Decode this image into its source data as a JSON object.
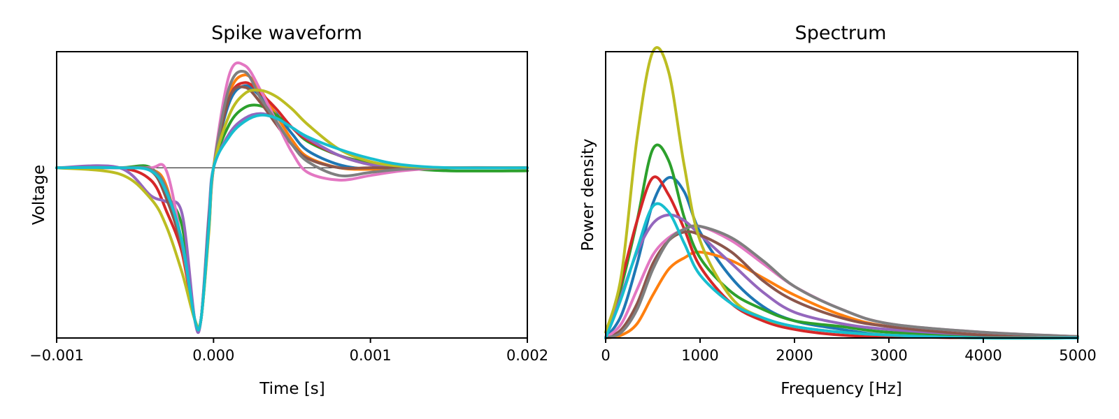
{
  "chart_data": [
    {
      "type": "line",
      "title": "Spike waveform",
      "xlabel": "Time [s]",
      "ylabel": "Voltage",
      "xlim": [
        -0.001,
        0.002
      ],
      "ylim": [
        -1.1,
        0.75
      ],
      "xticks": [
        -0.001,
        0.0,
        0.001,
        0.002
      ],
      "xtick_labels": [
        "−0.001",
        "0.000",
        "0.001",
        "0.002"
      ],
      "zero_line": true,
      "series": [
        {
          "name": "blue",
          "color": "#1f77b4",
          "x": [
            -0.001,
            -0.0006,
            -0.0004,
            -0.0003,
            -0.0002,
            -0.00012,
            -8e-05,
            -3e-05,
            0.0,
            0.0001,
            0.0002,
            0.0003,
            0.0004,
            0.0005,
            0.0006,
            0.0008,
            0.001,
            0.0012,
            0.0015,
            0.002
          ],
          "y": [
            0.0,
            0.0,
            -0.02,
            -0.18,
            -0.5,
            -0.98,
            -0.98,
            -0.4,
            0.0,
            0.42,
            0.53,
            0.46,
            0.35,
            0.22,
            0.11,
            0.02,
            -0.01,
            -0.01,
            0.0,
            0.0
          ]
        },
        {
          "name": "orange",
          "color": "#ff7f0e",
          "x": [
            -0.001,
            -0.0006,
            -0.0004,
            -0.0003,
            -0.0002,
            -0.00012,
            -8e-05,
            -3e-05,
            0.0,
            0.0001,
            0.0002,
            0.0003,
            0.0004,
            0.0005,
            0.0006,
            0.0008,
            0.001,
            0.0012,
            0.0015,
            0.002
          ],
          "y": [
            0.0,
            0.0,
            -0.01,
            -0.12,
            -0.55,
            -0.98,
            -0.98,
            -0.35,
            0.0,
            0.48,
            0.6,
            0.5,
            0.34,
            0.18,
            0.07,
            0.0,
            -0.01,
            0.0,
            0.0,
            0.0
          ]
        },
        {
          "name": "green",
          "color": "#2ca02c",
          "x": [
            -0.001,
            -0.0006,
            -0.0004,
            -0.0003,
            -0.0002,
            -0.00012,
            -8e-05,
            -3e-05,
            0.0,
            0.0001,
            0.0002,
            0.0003,
            0.0004,
            0.0005,
            0.0006,
            0.0008,
            0.001,
            0.0012,
            0.0015,
            0.002
          ],
          "y": [
            0.0,
            0.0,
            0.0,
            -0.18,
            -0.38,
            -0.98,
            -0.98,
            -0.38,
            0.0,
            0.28,
            0.39,
            0.4,
            0.34,
            0.26,
            0.17,
            0.08,
            0.03,
            0.0,
            -0.02,
            -0.02
          ]
        },
        {
          "name": "red",
          "color": "#d62728",
          "x": [
            -0.001,
            -0.0006,
            -0.0004,
            -0.0003,
            -0.0002,
            -0.00012,
            -8e-05,
            -3e-05,
            0.0,
            0.0001,
            0.0002,
            0.0003,
            0.0004,
            0.0005,
            0.0006,
            0.0008,
            0.001,
            0.0012,
            0.0015,
            0.002
          ],
          "y": [
            0.0,
            0.0,
            -0.08,
            -0.28,
            -0.55,
            -0.98,
            -0.98,
            -0.35,
            0.0,
            0.45,
            0.55,
            0.48,
            0.38,
            0.26,
            0.18,
            0.08,
            0.02,
            0.0,
            0.0,
            0.0
          ]
        },
        {
          "name": "purple",
          "color": "#9467bd",
          "x": [
            -0.001,
            -0.0006,
            -0.0004,
            -0.0003,
            -0.0002,
            -0.00012,
            -8e-05,
            -3e-05,
            0.0,
            0.0001,
            0.0002,
            0.0003,
            0.0004,
            0.0005,
            0.0006,
            0.0008,
            0.001,
            0.0012,
            0.0015,
            0.002
          ],
          "y": [
            0.0,
            0.0,
            -0.18,
            -0.22,
            -0.3,
            -0.98,
            -0.98,
            -0.3,
            0.0,
            0.22,
            0.32,
            0.35,
            0.32,
            0.26,
            0.19,
            0.08,
            0.02,
            0.0,
            0.0,
            0.0
          ]
        },
        {
          "name": "brown",
          "color": "#8c564b",
          "x": [
            -0.001,
            -0.0006,
            -0.0004,
            -0.0003,
            -0.0002,
            -0.00012,
            -8e-05,
            -3e-05,
            0.0,
            0.0001,
            0.0002,
            0.0003,
            0.0004,
            0.0005,
            0.0006,
            0.0008,
            0.001,
            0.0012,
            0.0015,
            0.002
          ],
          "y": [
            0.0,
            0.0,
            -0.02,
            -0.2,
            -0.52,
            -0.98,
            -0.98,
            -0.35,
            0.0,
            0.45,
            0.52,
            0.42,
            0.28,
            0.15,
            0.06,
            0.0,
            0.0,
            0.0,
            0.0,
            0.0
          ]
        },
        {
          "name": "pink",
          "color": "#e377c2",
          "x": [
            -0.001,
            -0.0006,
            -0.0004,
            -0.0003,
            -0.0002,
            -0.00012,
            -8e-05,
            -3e-05,
            0.0,
            0.0001,
            0.0002,
            0.0003,
            0.0004,
            0.0005,
            0.0006,
            0.0008,
            0.001,
            0.0012,
            0.0015,
            0.002
          ],
          "y": [
            0.0,
            0.0,
            0.0,
            -0.02,
            -0.5,
            -0.98,
            -0.98,
            -0.4,
            0.0,
            0.6,
            0.66,
            0.5,
            0.3,
            0.1,
            -0.03,
            -0.08,
            -0.05,
            -0.02,
            0.0,
            0.0
          ]
        },
        {
          "name": "gray",
          "color": "#7f7f7f",
          "x": [
            -0.001,
            -0.0006,
            -0.0004,
            -0.0003,
            -0.0002,
            -0.00012,
            -8e-05,
            -3e-05,
            0.0,
            0.0001,
            0.0002,
            0.0003,
            0.0004,
            0.0005,
            0.0006,
            0.0008,
            0.001,
            0.0012,
            0.0015,
            0.002
          ],
          "y": [
            0.0,
            0.0,
            -0.01,
            -0.14,
            -0.5,
            -0.98,
            -0.98,
            -0.38,
            0.0,
            0.52,
            0.62,
            0.45,
            0.3,
            0.15,
            0.04,
            -0.05,
            -0.03,
            -0.01,
            0.0,
            0.0
          ]
        },
        {
          "name": "olive",
          "color": "#bcbd22",
          "x": [
            -0.001,
            -0.0006,
            -0.0004,
            -0.0003,
            -0.0002,
            -0.00012,
            -8e-05,
            -3e-05,
            0.0,
            0.0001,
            0.0002,
            0.0003,
            0.0004,
            0.0005,
            0.0006,
            0.0008,
            0.001,
            0.0012,
            0.0015,
            0.002
          ],
          "y": [
            0.0,
            -0.04,
            -0.2,
            -0.38,
            -0.68,
            -0.98,
            -0.98,
            -0.42,
            0.0,
            0.34,
            0.48,
            0.5,
            0.46,
            0.38,
            0.28,
            0.12,
            0.04,
            0.01,
            0.0,
            0.0
          ]
        },
        {
          "name": "cyan",
          "color": "#17becf",
          "x": [
            -0.001,
            -0.0006,
            -0.0004,
            -0.0003,
            -0.0002,
            -0.00012,
            -8e-05,
            -3e-05,
            0.0,
            0.0001,
            0.0002,
            0.0003,
            0.0004,
            0.0005,
            0.0006,
            0.0008,
            0.001,
            0.0012,
            0.0015,
            0.002
          ],
          "y": [
            0.0,
            0.0,
            -0.02,
            -0.16,
            -0.48,
            -0.98,
            -0.98,
            -0.38,
            0.0,
            0.2,
            0.3,
            0.34,
            0.32,
            0.26,
            0.2,
            0.12,
            0.06,
            0.02,
            0.0,
            0.0
          ]
        }
      ]
    },
    {
      "type": "line",
      "title": "Spectrum",
      "xlabel": "Frequency [Hz]",
      "ylabel": "Power density",
      "xlim": [
        0,
        5000
      ],
      "ylim": [
        0,
        1.0
      ],
      "xticks": [
        0,
        1000,
        2000,
        3000,
        4000,
        5000
      ],
      "xtick_labels": [
        "0",
        "1000",
        "2000",
        "3000",
        "4000",
        "5000"
      ],
      "series": [
        {
          "name": "blue",
          "color": "#1f77b4",
          "x": [
            0,
            167,
            333,
            500,
            667,
            833,
            1000,
            1333,
            1667,
            2000,
            2500,
            3000,
            4000,
            5000
          ],
          "y": [
            0,
            0.08,
            0.26,
            0.47,
            0.56,
            0.51,
            0.37,
            0.21,
            0.11,
            0.06,
            0.03,
            0.01,
            0.005,
            0.0
          ]
        },
        {
          "name": "orange",
          "color": "#ff7f0e",
          "x": [
            0,
            167,
            333,
            500,
            667,
            833,
            1000,
            1333,
            1667,
            2000,
            2500,
            3000,
            4000,
            5000
          ],
          "y": [
            0,
            0.01,
            0.05,
            0.15,
            0.24,
            0.28,
            0.3,
            0.27,
            0.21,
            0.15,
            0.08,
            0.04,
            0.01,
            0.0
          ]
        },
        {
          "name": "green",
          "color": "#2ca02c",
          "x": [
            0,
            167,
            333,
            500,
            667,
            833,
            1000,
            1333,
            1667,
            2000,
            2500,
            3000,
            4000,
            5000
          ],
          "y": [
            0,
            0.18,
            0.41,
            0.66,
            0.62,
            0.42,
            0.28,
            0.16,
            0.1,
            0.06,
            0.04,
            0.02,
            0.01,
            0.005
          ]
        },
        {
          "name": "red",
          "color": "#d62728",
          "x": [
            0,
            167,
            333,
            500,
            667,
            833,
            1000,
            1333,
            1667,
            2000,
            2500,
            3000,
            4000,
            5000
          ],
          "y": [
            0,
            0.2,
            0.41,
            0.56,
            0.5,
            0.38,
            0.25,
            0.12,
            0.06,
            0.03,
            0.01,
            0.005,
            0.0,
            0.0
          ]
        },
        {
          "name": "purple",
          "color": "#9467bd",
          "x": [
            0,
            167,
            333,
            500,
            667,
            833,
            1000,
            1333,
            1667,
            2000,
            2500,
            3000,
            4000,
            5000
          ],
          "y": [
            0,
            0.15,
            0.3,
            0.4,
            0.43,
            0.41,
            0.36,
            0.26,
            0.16,
            0.09,
            0.05,
            0.03,
            0.01,
            0.0
          ]
        },
        {
          "name": "brown",
          "color": "#8c564b",
          "x": [
            0,
            167,
            333,
            500,
            667,
            833,
            1000,
            1333,
            1667,
            2000,
            2500,
            3000,
            4000,
            5000
          ],
          "y": [
            0,
            0.03,
            0.12,
            0.26,
            0.34,
            0.37,
            0.36,
            0.3,
            0.2,
            0.13,
            0.07,
            0.04,
            0.01,
            0.0
          ]
        },
        {
          "name": "pink",
          "color": "#e377c2",
          "x": [
            0,
            167,
            333,
            500,
            667,
            833,
            1000,
            1333,
            1667,
            2000,
            2500,
            3000,
            4000,
            5000
          ],
          "y": [
            0,
            0.05,
            0.17,
            0.29,
            0.35,
            0.38,
            0.39,
            0.34,
            0.26,
            0.18,
            0.1,
            0.05,
            0.02,
            0.005
          ]
        },
        {
          "name": "gray",
          "color": "#7f7f7f",
          "x": [
            0,
            167,
            333,
            500,
            667,
            833,
            1000,
            1333,
            1667,
            2000,
            2500,
            3000,
            4000,
            5000
          ],
          "y": [
            0,
            0.02,
            0.1,
            0.24,
            0.34,
            0.38,
            0.39,
            0.35,
            0.27,
            0.18,
            0.1,
            0.05,
            0.02,
            0.005
          ]
        },
        {
          "name": "olive",
          "color": "#bcbd22",
          "x": [
            0,
            167,
            333,
            500,
            667,
            833,
            1000,
            1333,
            1667,
            2000,
            2500,
            3000,
            4000,
            5000
          ],
          "y": [
            0.02,
            0.22,
            0.7,
            1.0,
            0.93,
            0.6,
            0.34,
            0.14,
            0.07,
            0.04,
            0.02,
            0.01,
            0.0,
            0.0
          ]
        },
        {
          "name": "cyan",
          "color": "#17becf",
          "x": [
            0,
            167,
            333,
            500,
            667,
            833,
            1000,
            1333,
            1667,
            2000,
            2500,
            3000,
            4000,
            5000
          ],
          "y": [
            0,
            0.14,
            0.31,
            0.46,
            0.44,
            0.33,
            0.22,
            0.12,
            0.07,
            0.04,
            0.02,
            0.01,
            0.0,
            0.0
          ]
        }
      ]
    }
  ]
}
